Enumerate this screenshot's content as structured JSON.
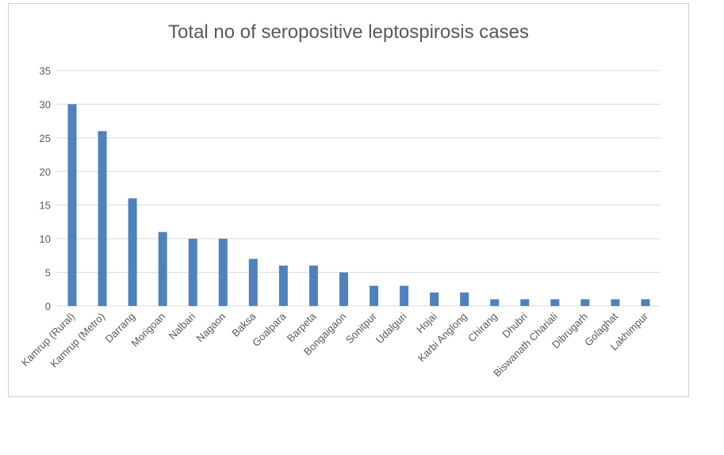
{
  "chart_data": {
    "type": "bar",
    "title": "Total no of seropositive leptospirosis cases",
    "xlabel": "",
    "ylabel": "",
    "ylim": [
      0,
      35
    ],
    "yticks": [
      0,
      5,
      10,
      15,
      20,
      25,
      30,
      35
    ],
    "grid": true,
    "legend": "none",
    "bar_color": "#4f81bd",
    "categories": [
      "Kamrup (Rural)",
      "Kamrup (Metro)",
      "Darrang",
      "Morigoan",
      "Nalbari",
      "Nagaon",
      "Baksa",
      "Goalpara",
      "Barpeta",
      "Bongaigaon",
      "Sonitpur",
      "Udalguri",
      "Hojai",
      "Karbi Anglong",
      "Chirang",
      "Dhubri",
      "Biswanath Chariali",
      "Dibrugarh",
      "Golaghat",
      "Lakhimpur"
    ],
    "values": [
      30,
      26,
      16,
      11,
      10,
      10,
      7,
      6,
      6,
      5,
      3,
      3,
      2,
      2,
      1,
      1,
      1,
      1,
      1,
      1
    ]
  }
}
